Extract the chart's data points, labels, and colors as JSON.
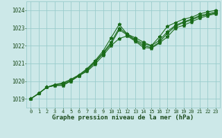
{
  "title": "Graphe pression niveau de la mer (hPa)",
  "xlabel_hours": [
    0,
    1,
    2,
    3,
    4,
    5,
    6,
    7,
    8,
    9,
    10,
    11,
    12,
    13,
    14,
    15,
    16,
    17,
    18,
    19,
    20,
    21,
    22,
    23
  ],
  "ylim": [
    1018.5,
    1024.5
  ],
  "yticks": [
    1019,
    1020,
    1021,
    1022,
    1023,
    1024
  ],
  "bg_color": "#cce8e8",
  "grid_color": "#99cccc",
  "line_color": "#1a6b1a",
  "tick_color": "#1a4a1a",
  "lines": [
    [
      1019.0,
      1019.3,
      1019.65,
      1019.75,
      1019.75,
      1020.0,
      1020.3,
      1020.55,
      1020.95,
      1021.45,
      1022.0,
      1022.4,
      1022.55,
      1022.25,
      1021.9,
      1021.85,
      1022.15,
      1022.5,
      1023.0,
      1023.15,
      1023.35,
      1023.55,
      1023.7,
      1023.8
    ],
    [
      1019.0,
      1019.3,
      1019.65,
      1019.75,
      1019.8,
      1020.0,
      1020.3,
      1020.6,
      1021.05,
      1021.55,
      1022.1,
      1022.9,
      1022.6,
      1022.3,
      1022.0,
      1021.9,
      1022.2,
      1022.7,
      1023.1,
      1023.3,
      1023.45,
      1023.65,
      1023.75,
      1023.85
    ],
    [
      1019.0,
      1019.3,
      1019.65,
      1019.8,
      1019.85,
      1020.05,
      1020.35,
      1020.65,
      1021.1,
      1021.6,
      1022.2,
      1023.0,
      1022.65,
      1022.35,
      1022.1,
      1022.0,
      1022.3,
      1022.8,
      1023.15,
      1023.35,
      1023.5,
      1023.7,
      1023.8,
      1023.9
    ],
    [
      1019.0,
      1019.3,
      1019.65,
      1019.8,
      1019.9,
      1020.1,
      1020.35,
      1020.7,
      1021.15,
      1021.7,
      1022.45,
      1023.2,
      1022.65,
      1022.45,
      1022.2,
      1022.0,
      1022.5,
      1023.1,
      1023.3,
      1023.5,
      1023.6,
      1023.8,
      1023.9,
      1024.0
    ]
  ]
}
